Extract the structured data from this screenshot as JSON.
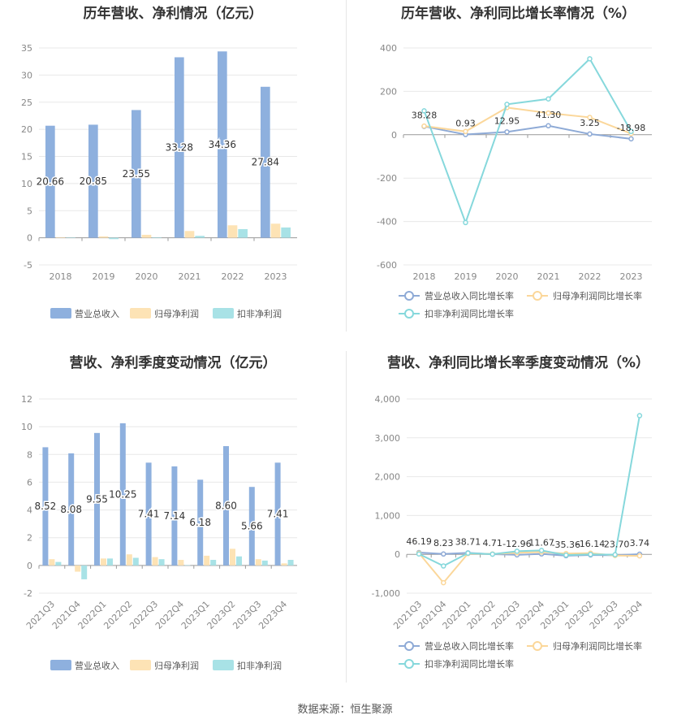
{
  "source_text": "数据来源：恒生聚源",
  "colors": {
    "revenue": "#8eb0de",
    "net_profit": "#fde3b5",
    "deducted_profit": "#a8e2e6",
    "revenue_line": "#8eaad6",
    "net_profit_line": "#fbd79a",
    "deducted_line": "#86d8dc"
  },
  "chart_data": [
    {
      "id": "annual-amounts",
      "type": "bar",
      "title": "历年营收、净利情况（亿元）",
      "categories": [
        "2018",
        "2019",
        "2020",
        "2021",
        "2022",
        "2023"
      ],
      "ylim": [
        -5,
        35
      ],
      "yticks": [
        -5,
        0,
        5,
        10,
        15,
        20,
        25,
        30,
        35
      ],
      "grid": true,
      "legend_position": "bottom",
      "series": [
        {
          "name": "营业总收入",
          "values": [
            20.66,
            20.85,
            23.55,
            33.28,
            34.36,
            27.84
          ],
          "labels": [
            "20.66",
            "20.85",
            "23.55",
            "33.28",
            "34.36",
            "27.84"
          ]
        },
        {
          "name": "归母净利润",
          "values": [
            0.1,
            0.25,
            0.55,
            1.25,
            2.3,
            2.6
          ]
        },
        {
          "name": "扣非净利润",
          "values": [
            0.05,
            -0.25,
            0.1,
            0.35,
            1.6,
            1.9
          ]
        }
      ]
    },
    {
      "id": "annual-growth",
      "type": "line",
      "title": "历年营收、净利同比增长率情况（%）",
      "categories": [
        "2018",
        "2019",
        "2020",
        "2021",
        "2022",
        "2023"
      ],
      "ylim": [
        -600,
        400
      ],
      "yticks": [
        -600,
        -400,
        -200,
        0,
        200,
        400
      ],
      "grid": true,
      "legend_position": "bottom",
      "series": [
        {
          "name": "营业总收入同比增长率",
          "values": [
            38.28,
            0.93,
            12.95,
            41.3,
            3.25,
            -18.98
          ],
          "labels": [
            "38.28",
            "0.93",
            "12.95",
            "41.30",
            "3.25",
            "-18.98"
          ]
        },
        {
          "name": "归母净利润同比增长率",
          "values": [
            40,
            15,
            125,
            100,
            80,
            5
          ]
        },
        {
          "name": "扣非净利润同比增长率",
          "values": [
            110,
            -405,
            140,
            165,
            350,
            15
          ]
        }
      ]
    },
    {
      "id": "quarterly-amounts",
      "type": "bar",
      "title": "营收、净利季度变动情况（亿元）",
      "categories": [
        "2021Q3",
        "2021Q4",
        "2022Q1",
        "2022Q2",
        "2022Q3",
        "2022Q4",
        "2023Q1",
        "2023Q2",
        "2023Q3",
        "2023Q4"
      ],
      "ylim": [
        -2,
        12
      ],
      "yticks": [
        -2,
        0,
        2,
        4,
        6,
        8,
        10,
        12
      ],
      "grid": true,
      "legend_position": "bottom",
      "series": [
        {
          "name": "营业总收入",
          "values": [
            8.52,
            8.08,
            9.55,
            10.25,
            7.41,
            7.14,
            6.18,
            8.6,
            5.66,
            7.41
          ],
          "labels": [
            "8.52",
            "8.08",
            "9.55",
            "10.25",
            "7.41",
            "7.14",
            "6.18",
            "8.60",
            "5.66",
            "7.41"
          ]
        },
        {
          "name": "归母净利润",
          "values": [
            0.45,
            -0.45,
            0.5,
            0.8,
            0.6,
            0.4,
            0.7,
            1.2,
            0.45,
            0.15
          ]
        },
        {
          "name": "扣非净利润",
          "values": [
            0.25,
            -1.0,
            0.5,
            0.55,
            0.45,
            0.02,
            0.4,
            0.65,
            0.35,
            0.4
          ]
        }
      ]
    },
    {
      "id": "quarterly-growth",
      "type": "line",
      "title": "营收、净利同比增长率季度变动情况（%）",
      "categories": [
        "2021Q3",
        "2021Q4",
        "2022Q1",
        "2022Q2",
        "2022Q3",
        "2022Q4",
        "2023Q1",
        "2023Q2",
        "2023Q3",
        "2023Q4"
      ],
      "ylim": [
        -1000,
        4000
      ],
      "yticks": [
        -1000,
        0,
        1000,
        2000,
        3000,
        4000
      ],
      "ytick_labels": [
        "-1,000",
        "0",
        "1,000",
        "2,000",
        "3,000",
        "4,000"
      ],
      "grid": true,
      "legend_position": "bottom",
      "series": [
        {
          "name": "营业总收入同比增长率",
          "values": [
            46.19,
            8.23,
            38.71,
            4.71,
            -12.96,
            11.67,
            -35.36,
            -16.14,
            -23.7,
            3.74
          ],
          "labels": [
            "46.19",
            "8.23",
            "38.71",
            "4.71",
            "-12.96",
            "11.67",
            "-35.36",
            "-16.14",
            "-23.70",
            "3.74"
          ]
        },
        {
          "name": "归母净利润同比增长率",
          "values": [
            30,
            -730,
            20,
            10,
            40,
            60,
            20,
            30,
            -30,
            -40
          ]
        },
        {
          "name": "扣非净利润同比增长率",
          "values": [
            10,
            -300,
            30,
            5,
            80,
            100,
            -20,
            0,
            -10,
            3570
          ]
        }
      ]
    }
  ]
}
